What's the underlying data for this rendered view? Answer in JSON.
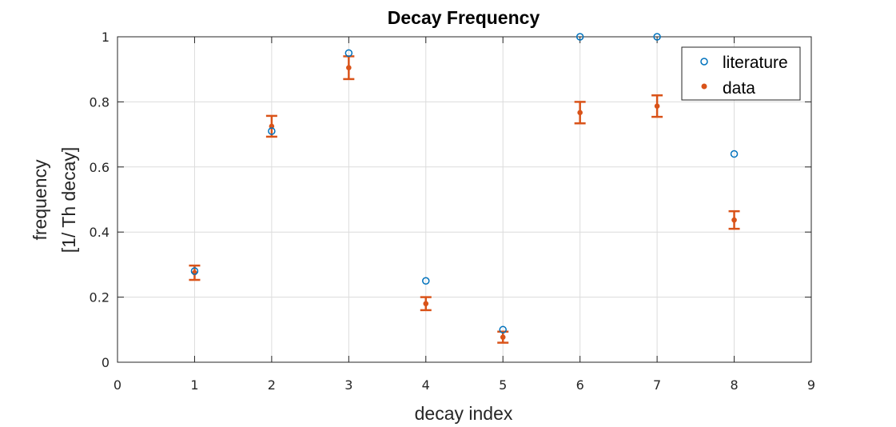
{
  "chart_data": {
    "type": "scatter",
    "title": "Decay Frequency",
    "xlabel": "decay index",
    "ylabel_lines": [
      "frequency",
      "[1/ Th decay]"
    ],
    "xlim": [
      0,
      9
    ],
    "ylim": [
      0,
      1
    ],
    "x_ticks": [
      "0",
      "1",
      "2",
      "3",
      "4",
      "5",
      "6",
      "7",
      "8",
      "9"
    ],
    "y_ticks": [
      "0",
      "0.2",
      "0.4",
      "0.6",
      "0.8",
      "1"
    ],
    "grid": true,
    "legend_position": "top-right",
    "series": [
      {
        "name": "literature",
        "marker": "open-circle",
        "color": "#0072BD",
        "x": [
          1,
          2,
          3,
          4,
          5,
          6,
          7,
          8
        ],
        "y": [
          0.28,
          0.71,
          0.95,
          0.25,
          0.1,
          1.0,
          1.0,
          0.64
        ]
      },
      {
        "name": "data",
        "marker": "filled-dot-with-errorbar",
        "color": "#D95319",
        "x": [
          1,
          2,
          3,
          4,
          5,
          6,
          7,
          8
        ],
        "y": [
          0.275,
          0.725,
          0.905,
          0.18,
          0.077,
          0.767,
          0.787,
          0.437
        ],
        "error": [
          0.022,
          0.032,
          0.035,
          0.02,
          0.017,
          0.033,
          0.033,
          0.027
        ]
      }
    ]
  }
}
